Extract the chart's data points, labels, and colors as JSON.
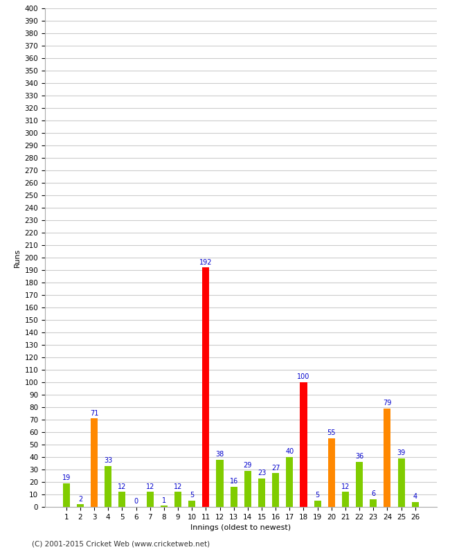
{
  "xlabel": "Innings (oldest to newest)",
  "ylabel": "Runs",
  "footer": "(C) 2001-2015 Cricket Web (www.cricketweb.net)",
  "categories": [
    "1",
    "2",
    "3",
    "4",
    "5",
    "6",
    "7",
    "8",
    "9",
    "10",
    "11",
    "12",
    "13",
    "14",
    "15",
    "16",
    "17",
    "18",
    "19",
    "20",
    "21",
    "22",
    "23",
    "24",
    "25",
    "26"
  ],
  "values": [
    19,
    2,
    71,
    33,
    12,
    0,
    12,
    1,
    12,
    5,
    192,
    38,
    16,
    29,
    23,
    27,
    40,
    100,
    5,
    55,
    12,
    36,
    6,
    79,
    39,
    4
  ],
  "colors": [
    "#80cc00",
    "#80cc00",
    "#ff8800",
    "#80cc00",
    "#80cc00",
    "#80cc00",
    "#80cc00",
    "#80cc00",
    "#80cc00",
    "#80cc00",
    "#ff0000",
    "#80cc00",
    "#80cc00",
    "#80cc00",
    "#80cc00",
    "#80cc00",
    "#80cc00",
    "#ff0000",
    "#80cc00",
    "#ff8800",
    "#80cc00",
    "#80cc00",
    "#80cc00",
    "#ff8800",
    "#80cc00",
    "#80cc00"
  ],
  "label_color": "#0000cc",
  "ylim": [
    0,
    400
  ],
  "yticks": [
    0,
    10,
    20,
    30,
    40,
    50,
    60,
    70,
    80,
    90,
    100,
    110,
    120,
    130,
    140,
    150,
    160,
    170,
    180,
    190,
    200,
    210,
    220,
    230,
    240,
    250,
    260,
    270,
    280,
    290,
    300,
    310,
    320,
    330,
    340,
    350,
    360,
    370,
    380,
    390,
    400
  ],
  "background_color": "#ffffff",
  "grid_color": "#cccccc",
  "tick_fontsize": 7.5,
  "label_fontsize": 7,
  "ylabel_fontsize": 8,
  "xlabel_fontsize": 8,
  "footer_fontsize": 7.5,
  "bar_width": 0.5
}
